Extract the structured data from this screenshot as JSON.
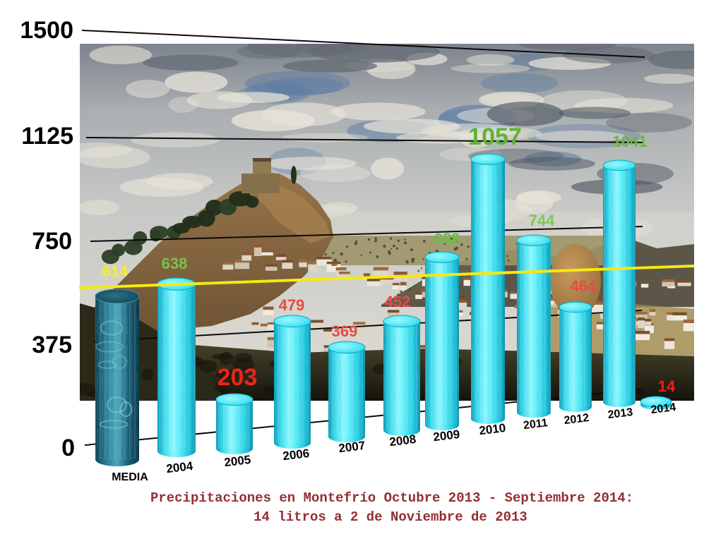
{
  "chart_data": {
    "type": "bar",
    "subtype": "3d-cylinder-perspective-over-photo",
    "background_photo": "hilltop town of Montefrio: castle church on rock, white village houses, olive groves, church dome, cloudy sky",
    "title_lines": [
      "Precipitaciones en Montefrío Octubre 2013 - Septiembre 2014:",
      "14 litros a 2 de Noviembre de 2013"
    ],
    "categories": [
      "MEDIA",
      "2004",
      "2005",
      "2006",
      "2007",
      "2008",
      "2009",
      "2010",
      "2011",
      "2012",
      "2013",
      "2014"
    ],
    "values": [
      614,
      638,
      203,
      479,
      369,
      452,
      688,
      1057,
      744,
      464,
      1041,
      14
    ],
    "value_labels": [
      "614",
      "638",
      "203",
      "479",
      "369",
      "452",
      "688",
      "1057",
      "744",
      "464",
      "1041",
      "14"
    ],
    "value_label_colors": [
      "#f6ee26",
      "#79c24d",
      "#ec2418",
      "#e64c44",
      "#e64c44",
      "#e64c44",
      "#6abf45",
      "#5fb237",
      "#7cc953",
      "#e64c44",
      "#6cb83e",
      "#f01e14"
    ],
    "value_label_big": [
      false,
      false,
      true,
      false,
      false,
      false,
      false,
      true,
      false,
      false,
      false,
      false
    ],
    "y_axis": {
      "ticks": [
        "1500",
        "1125",
        "750",
        "375",
        "0"
      ],
      "tick_values": [
        1500,
        1125,
        750,
        375,
        0
      ],
      "ylim": [
        0,
        1500
      ],
      "gridlines": true
    },
    "average_line": {
      "value": 614,
      "belongs_to": "MEDIA",
      "color": "#f6e912"
    },
    "legend_position": "none",
    "colors": {
      "bar_fill": "#3fdcef",
      "bar_highlight": "#8df6fd",
      "bar_edge": "#0c9db6",
      "media_bar_fill": "#2b7e95",
      "gridline": "#0b0b0b",
      "axis_text": "#000000",
      "year_text": "#000000",
      "caption_text": "#932e33"
    }
  }
}
